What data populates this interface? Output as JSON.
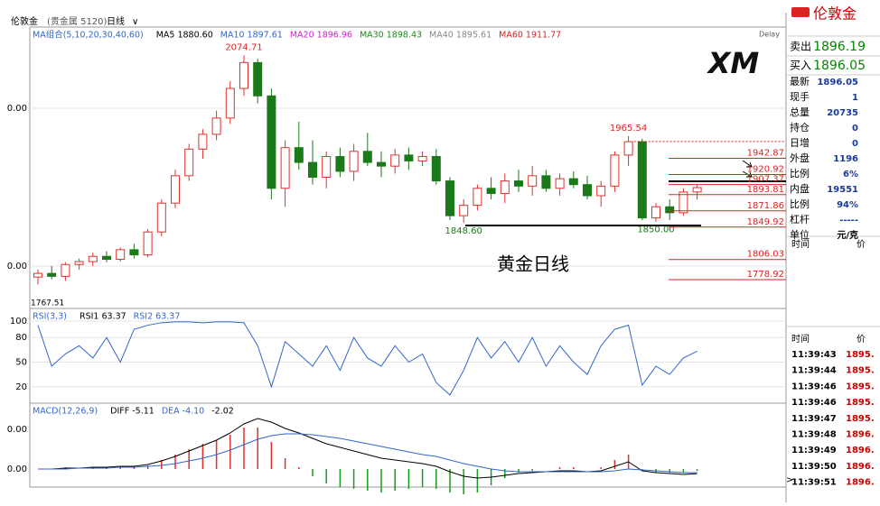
{
  "header": {
    "symbol": "伦敦金",
    "market": "(贵金属 5120)",
    "period": "日线"
  },
  "ma_legend": [
    "MA组合(5,10,20,30,40,60)",
    "MA5 1880.60",
    "MA10 1897.61",
    "MA20 1896.96",
    "MA30 1898.43",
    "MA40 1895.61",
    "MA60 1911.77"
  ],
  "delay": "Delay",
  "logo": "XM",
  "main": {
    "ylim": [
      1735,
      2113
    ],
    "axis_labels": [
      "0.00",
      "0.00"
    ],
    "low_label": "1767.51",
    "caption": "黄金日线",
    "candles": [
      [
        1775,
        1785,
        1765,
        1780
      ],
      [
        1780,
        1790,
        1772,
        1776
      ],
      [
        1776,
        1795,
        1770,
        1792
      ],
      [
        1792,
        1800,
        1785,
        1796
      ],
      [
        1796,
        1808,
        1790,
        1803
      ],
      [
        1803,
        1810,
        1795,
        1799
      ],
      [
        1799,
        1815,
        1796,
        1812
      ],
      [
        1812,
        1820,
        1800,
        1805
      ],
      [
        1805,
        1840,
        1802,
        1836
      ],
      [
        1836,
        1880,
        1830,
        1875
      ],
      [
        1875,
        1920,
        1868,
        1912
      ],
      [
        1912,
        1955,
        1905,
        1948
      ],
      [
        1948,
        1975,
        1935,
        1968
      ],
      [
        1968,
        2000,
        1960,
        1990
      ],
      [
        1990,
        2040,
        1982,
        2030
      ],
      [
        2030,
        2074.71,
        2020,
        2065
      ],
      [
        2065,
        2070,
        2010,
        2020
      ],
      [
        2020,
        2030,
        1880,
        1895
      ],
      [
        1895,
        1960,
        1870,
        1950
      ],
      [
        1950,
        1985,
        1920,
        1930
      ],
      [
        1930,
        1960,
        1900,
        1910
      ],
      [
        1910,
        1945,
        1895,
        1938
      ],
      [
        1938,
        1950,
        1910,
        1918
      ],
      [
        1918,
        1955,
        1905,
        1945
      ],
      [
        1945,
        1970,
        1925,
        1930
      ],
      [
        1930,
        1945,
        1910,
        1925
      ],
      [
        1925,
        1948,
        1915,
        1940
      ],
      [
        1940,
        1950,
        1920,
        1932
      ],
      [
        1932,
        1945,
        1925,
        1938
      ],
      [
        1938,
        1948,
        1900,
        1905
      ],
      [
        1905,
        1910,
        1852,
        1858
      ],
      [
        1858,
        1880,
        1848.6,
        1872
      ],
      [
        1872,
        1900,
        1865,
        1895
      ],
      [
        1895,
        1910,
        1880,
        1888
      ],
      [
        1888,
        1915,
        1875,
        1905
      ],
      [
        1905,
        1920,
        1890,
        1898
      ],
      [
        1898,
        1925,
        1885,
        1912
      ],
      [
        1912,
        1920,
        1890,
        1895
      ],
      [
        1895,
        1915,
        1885,
        1908
      ],
      [
        1908,
        1918,
        1895,
        1900
      ],
      [
        1900,
        1912,
        1880,
        1885
      ],
      [
        1885,
        1905,
        1870,
        1898
      ],
      [
        1898,
        1945,
        1890,
        1940
      ],
      [
        1940,
        1965.54,
        1925,
        1958
      ],
      [
        1958,
        1962,
        1852,
        1855
      ],
      [
        1855,
        1875,
        1850,
        1870
      ],
      [
        1870,
        1880,
        1852,
        1862
      ],
      [
        1862,
        1895,
        1858,
        1890
      ],
      [
        1890,
        1900,
        1880,
        1896
      ]
    ],
    "annotations": [
      2074.71,
      {
        "value": 1848.6,
        "label": "1848.60"
      },
      {
        "value": 1850,
        "label": "1850.00"
      },
      1965.54
    ],
    "levels": [
      1942.87,
      1920.92,
      1907.37,
      1893.81,
      1871.86,
      1849.92,
      1806.03,
      1778.92
    ]
  },
  "rsi": {
    "legend": [
      "RSI(3,3)",
      "RSI1 63.37",
      "RSI2 63.37"
    ],
    "ylim": [
      0,
      100
    ],
    "yticks": [
      20,
      50,
      80,
      100
    ],
    "color": "#3366cc",
    "values": [
      95,
      45,
      60,
      70,
      55,
      80,
      50,
      90,
      95,
      98,
      99,
      99,
      98,
      99,
      99,
      98,
      70,
      20,
      75,
      60,
      45,
      70,
      40,
      80,
      55,
      45,
      70,
      50,
      60,
      25,
      10,
      40,
      80,
      55,
      75,
      50,
      80,
      45,
      70,
      50,
      35,
      70,
      90,
      95,
      22,
      45,
      35,
      55,
      63.37
    ]
  },
  "macd": {
    "legend": [
      "MACD(12,26,9)",
      "DIFF -5.11",
      "DEA -4.10",
      "-2.02"
    ],
    "ylim": [
      -20,
      70
    ],
    "axis_labels": [
      "0.00",
      "0.00"
    ],
    "diff": [
      0,
      0,
      1,
      1,
      2,
      2,
      3,
      3,
      5,
      9,
      14,
      20,
      26,
      32,
      40,
      50,
      56,
      52,
      45,
      40,
      34,
      28,
      24,
      20,
      16,
      12,
      10,
      8,
      6,
      3,
      -3,
      -8,
      -10,
      -9,
      -7,
      -5,
      -4,
      -3,
      -2,
      -2,
      -3,
      -2,
      3,
      8,
      -2,
      -4,
      -5,
      -6,
      -5.11
    ],
    "dea": [
      0,
      0,
      0,
      1,
      1,
      1,
      2,
      2,
      3,
      4,
      6,
      9,
      12,
      16,
      21,
      27,
      33,
      37,
      39,
      39,
      38,
      36,
      34,
      31,
      28,
      25,
      22,
      19,
      16,
      14,
      10,
      6,
      3,
      0,
      -2,
      -3,
      -3,
      -3,
      -3,
      -3,
      -3,
      -3,
      -2,
      0,
      -1,
      -2,
      -3,
      -4,
      -4.1
    ],
    "hist": [
      0,
      0,
      2,
      0,
      2,
      2,
      2,
      2,
      4,
      10,
      16,
      22,
      28,
      32,
      38,
      46,
      46,
      30,
      12,
      2,
      -8,
      -16,
      -20,
      -22,
      -24,
      -26,
      -24,
      -22,
      -20,
      -22,
      -26,
      -28,
      -26,
      -18,
      -10,
      -4,
      -2,
      0,
      2,
      2,
      0,
      2,
      10,
      16,
      -2,
      -4,
      -4,
      -4,
      -2.02
    ]
  },
  "quote": {
    "title": "伦敦金",
    "sell_label": "卖出",
    "sell": 1896.19,
    "buy_label": "买入",
    "buy": 1896.05,
    "stats": [
      [
        "最新",
        1896.05
      ],
      [
        "现手",
        1
      ],
      [
        "总量",
        20735
      ],
      [
        "持仓",
        0
      ],
      [
        "日增",
        0
      ],
      [
        "外盘",
        1196
      ],
      [
        "比例",
        "6%"
      ],
      [
        "内盘",
        19551
      ],
      [
        "比例",
        "94%"
      ],
      [
        "杠杆",
        "-----"
      ],
      [
        "单位",
        "元/克"
      ]
    ],
    "tick_header": [
      "时间",
      "价"
    ],
    "ticks": [
      [
        "11:39:43",
        "1895."
      ],
      [
        "11:39:44",
        "1895."
      ],
      [
        "11:39:46",
        "1895."
      ],
      [
        "11:39:46",
        "1895."
      ],
      [
        "11:39:47",
        "1895."
      ],
      [
        "11:39:48",
        "1896."
      ],
      [
        "11:39:49",
        "1896."
      ],
      [
        "11:39:50",
        "1896."
      ],
      [
        "11:39:51",
        "1896."
      ]
    ]
  }
}
